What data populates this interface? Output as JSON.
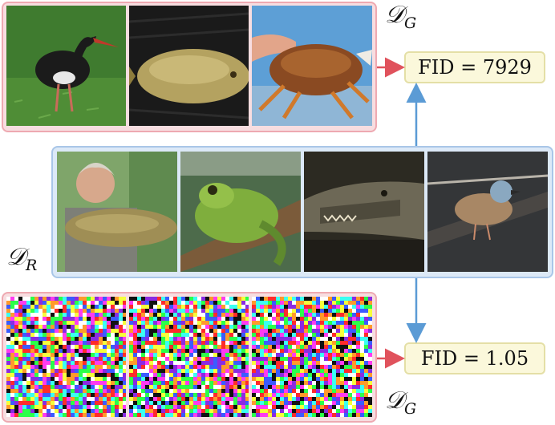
{
  "generated_top": {
    "label_symbol": "𝒟",
    "label_sub": "G",
    "images": [
      {
        "name": "black-stork-image",
        "sky": "#3f7b2f",
        "subject": "#1b1b1b"
      },
      {
        "name": "tench-fish-in-net-image",
        "sky": "#1a1a1a",
        "subject": "#b4a260"
      },
      {
        "name": "crab-in-hand-image",
        "sky": "#5d9fd6",
        "subject": "#8a4a22"
      }
    ]
  },
  "real": {
    "label_symbol": "𝒟",
    "label_sub": "R",
    "images": [
      {
        "name": "man-holding-tench-image",
        "sky": "#7fa56a",
        "subject": "#9f8e55"
      },
      {
        "name": "green-frog-image",
        "sky": "#4d6b4b",
        "subject": "#7fae3d"
      },
      {
        "name": "crocodile-image",
        "sky": "#2c2a22",
        "subject": "#6d6856"
      },
      {
        "name": "small-bird-image",
        "sky": "#343638",
        "subject": "#a88765"
      }
    ]
  },
  "generated_bottom": {
    "label_symbol": "𝒟",
    "label_sub": "G",
    "tiles": 3
  },
  "fid_top": {
    "text": "FID = 7929"
  },
  "fid_bottom": {
    "text": "FID = 1.05"
  },
  "colors": {
    "generated_border": "#eea9b1",
    "real_border": "#a9c6e8",
    "fid_fill": "#fbf8db",
    "red_arrow": "#e0525c",
    "blue_arrow": "#5b9bd5"
  }
}
